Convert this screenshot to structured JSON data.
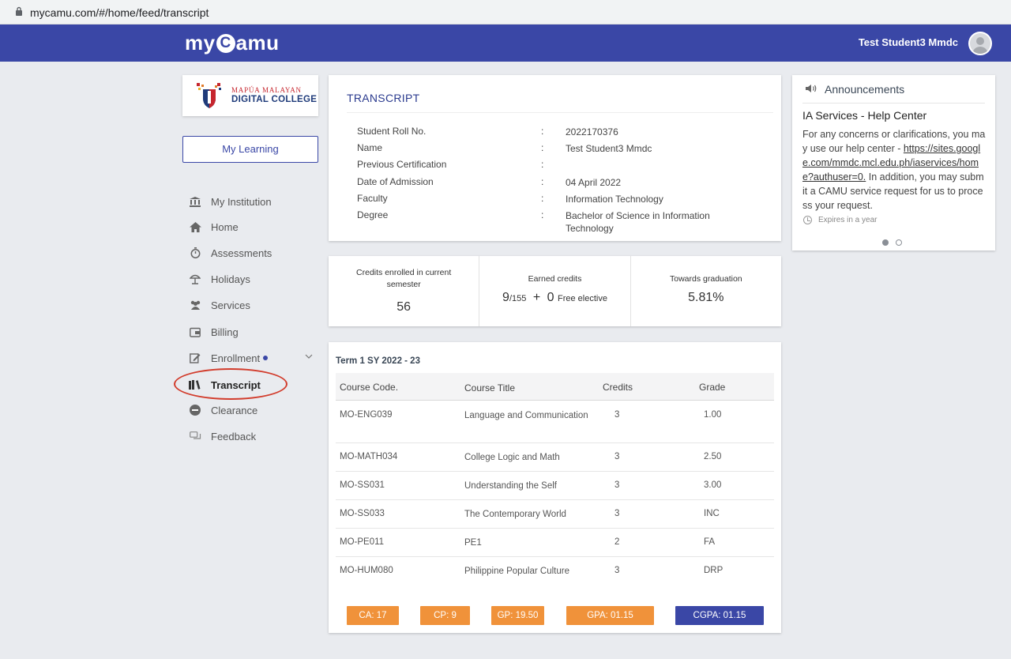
{
  "browser": {
    "url": "mycamu.com/#/home/feed/transcript"
  },
  "header": {
    "logo_prefix": "my",
    "logo_c": "C",
    "logo_suffix": "amu",
    "user_name": "Test Student3 Mmdc"
  },
  "college": {
    "line1": "MAPÚA MALAYAN",
    "line2": "DIGITAL COLLEGE"
  },
  "my_learning": "My Learning",
  "sidebar": {
    "items": [
      {
        "label": "My Institution",
        "icon": "institution-icon"
      },
      {
        "label": "Home",
        "icon": "home-icon"
      },
      {
        "label": "Assessments",
        "icon": "stopwatch-icon"
      },
      {
        "label": "Holidays",
        "icon": "beach-umbrella-icon"
      },
      {
        "label": "Services",
        "icon": "users-icon"
      },
      {
        "label": "Billing",
        "icon": "wallet-icon"
      },
      {
        "label": "Enrollment",
        "icon": "edit-icon"
      },
      {
        "label": "Transcript",
        "icon": "books-icon"
      },
      {
        "label": "Clearance",
        "icon": "minus-circle-icon"
      },
      {
        "label": "Feedback",
        "icon": "chat-icon"
      }
    ]
  },
  "transcript": {
    "title": "TRANSCRIPT",
    "fields": [
      {
        "label": "Student Roll No.",
        "sep": ":",
        "value": "2022170376"
      },
      {
        "label": "Name",
        "sep": ":",
        "value": "Test Student3 Mmdc"
      },
      {
        "label": "Previous Certification",
        "sep": ":",
        "value": ""
      },
      {
        "label": "Date of Admission",
        "sep": ":",
        "value": "04 April 2022"
      },
      {
        "label": "Faculty",
        "sep": ":",
        "value": "Information Technology"
      },
      {
        "label": "Degree",
        "sep": ":",
        "value": "Bachelor of Science in Information Technology"
      }
    ]
  },
  "stats": {
    "credits_label": "Credits enrolled in current semester",
    "credits_value": "56",
    "earned_label": "Earned credits",
    "earned_value": "9",
    "earned_total": "/155",
    "earned_plus": "+",
    "elective_value": "0",
    "elective_label": "Free elective",
    "graduation_label": "Towards graduation",
    "graduation_value": "5.81%"
  },
  "term": {
    "title": "Term 1  SY 2022 - 23",
    "columns": [
      "Course Code.",
      "Course Title",
      "Credits",
      "Grade"
    ],
    "rows": [
      {
        "code": "MO-ENG039",
        "title": "Language and Communication",
        "credits": "3",
        "grade": "1.00"
      },
      {
        "code": "MO-MATH034",
        "title": "College Logic and Math",
        "credits": "3",
        "grade": "2.50"
      },
      {
        "code": "MO-SS031",
        "title": "Understanding the Self",
        "credits": "3",
        "grade": "3.00"
      },
      {
        "code": "MO-SS033",
        "title": "The Contemporary World",
        "credits": "3",
        "grade": "INC"
      },
      {
        "code": "MO-PE011",
        "title": "PE1",
        "credits": "2",
        "grade": "FA"
      },
      {
        "code": "MO-HUM080",
        "title": "Philippine Popular Culture",
        "credits": "3",
        "grade": "DRP"
      }
    ],
    "badges": [
      {
        "label": "CA: 17",
        "color": "#f0923a"
      },
      {
        "label": "CP: 9",
        "color": "#f0923a"
      },
      {
        "label": "GP: 19.50",
        "color": "#f0923a"
      },
      {
        "label": "GPA: 01.15",
        "color": "#f0923a"
      },
      {
        "label": "CGPA: 01.15",
        "color": "#3a47a6"
      }
    ]
  },
  "announcements": {
    "title": "Announcements",
    "subtitle": "IA Services - Help Center",
    "body_pre": "For any concerns or clarifications, you may use our help center - ",
    "link": "https://sites.google.com/mmdc.mcl.edu.ph/iaservices/home?authuser=0.",
    "body_post": " In addition, you may submit a CAMU service request for us to process your request.",
    "expires": "Expires in a year"
  },
  "colors": {
    "brand": "#3a47a6",
    "accent_orange": "#f0923a",
    "annotation_red": "#d23c2c"
  }
}
